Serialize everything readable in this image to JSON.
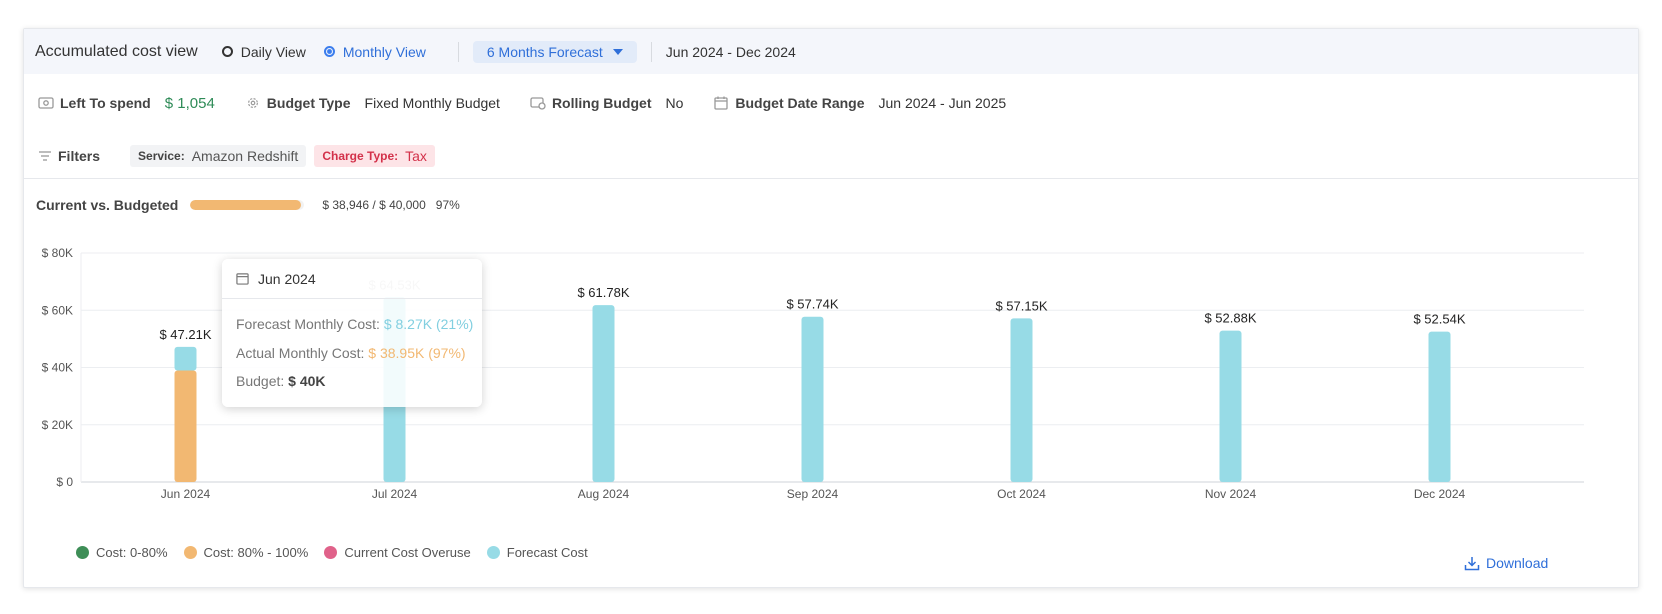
{
  "header": {
    "title": "Accumulated cost view",
    "views": [
      {
        "label": "Daily View",
        "selected": false
      },
      {
        "label": "Monthly View",
        "selected": true
      }
    ],
    "forecast_select": "6 Months Forecast",
    "date_range": "Jun 2024 - Dec 2024"
  },
  "budget": {
    "left_to_spend_label": "Left To spend",
    "left_to_spend_value": "$ 1,054",
    "budget_type_label": "Budget Type",
    "budget_type_value": "Fixed Monthly Budget",
    "rolling_label": "Rolling Budget",
    "rolling_value": "No",
    "date_range_label": "Budget Date Range",
    "date_range_value": "Jun 2024 - Jun 2025"
  },
  "filters": {
    "label": "Filters",
    "chips": [
      {
        "key": "Service:",
        "value": "Amazon Redshift"
      },
      {
        "key": "Charge Type:",
        "value": "Tax"
      }
    ]
  },
  "progress": {
    "label": "Current vs. Budgeted",
    "amount": "$ 38,946 / $ 40,000",
    "percent": "97%",
    "fraction": 0.97
  },
  "tooltip": {
    "month": "Jun 2024",
    "forecast_label": "Forecast Monthly Cost:",
    "forecast_value": "$ 8.27K (21%)",
    "actual_label": "Actual Monthly Cost:",
    "actual_value": "$ 38.95K (97%)",
    "budget_label": "Budget:",
    "budget_value": "$ 40K"
  },
  "chart_data": {
    "type": "bar",
    "categories": [
      "Jun 2024",
      "Jul 2024",
      "Aug 2024",
      "Sep 2024",
      "Oct 2024",
      "Nov 2024",
      "Dec 2024"
    ],
    "series": [
      {
        "name": "Cost: 80% - 100%",
        "values": [
          38.95,
          0,
          0,
          0,
          0,
          0,
          0
        ]
      },
      {
        "name": "Forecast Cost",
        "values": [
          8.27,
          64.53,
          61.78,
          57.74,
          57.15,
          52.88,
          52.54
        ]
      }
    ],
    "bar_labels": [
      "$ 47.21K",
      "$ 64.53K",
      "$ 61.78K",
      "$ 57.74K",
      "$ 57.15K",
      "$ 52.88K",
      "$ 52.54K"
    ],
    "totals": [
      47.21,
      64.53,
      61.78,
      57.74,
      57.15,
      52.88,
      52.54
    ],
    "y_ticks": [
      "$ 0",
      "$ 20K",
      "$ 40K",
      "$ 60K",
      "$ 80K"
    ],
    "ylim": [
      0,
      80
    ],
    "grid": true,
    "colors": {
      "actual": "#f2b872",
      "forecast": "#97dbe6"
    },
    "legend": [
      {
        "label": "Cost: 0-80%",
        "color": "#3e8e57"
      },
      {
        "label": "Cost: 80% - 100%",
        "color": "#f2b872"
      },
      {
        "label": "Current Cost Overuse",
        "color": "#e0628a"
      },
      {
        "label": "Forecast Cost",
        "color": "#97dbe6"
      }
    ]
  },
  "download_label": "Download"
}
